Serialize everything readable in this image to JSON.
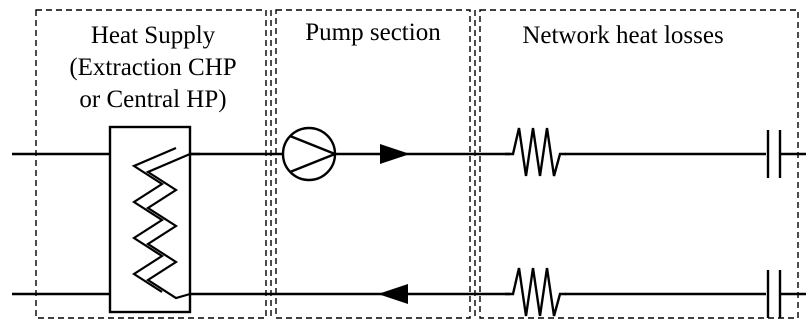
{
  "sections": {
    "heat_supply": {
      "lines": [
        "Heat Supply",
        "(Extraction CHP",
        "or Central HP)"
      ]
    },
    "pump": {
      "label": "Pump section"
    },
    "losses": {
      "label": "Network heat losses"
    }
  },
  "colors": {
    "stroke": "#000000",
    "background": "#ffffff"
  },
  "icons": {
    "pump": "pump-icon",
    "heat_exchanger": "heat-exchanger-icon",
    "resistor": "resistor-icon",
    "capacitor": "capacitor-icon",
    "arrow": "flow-arrow-icon"
  }
}
